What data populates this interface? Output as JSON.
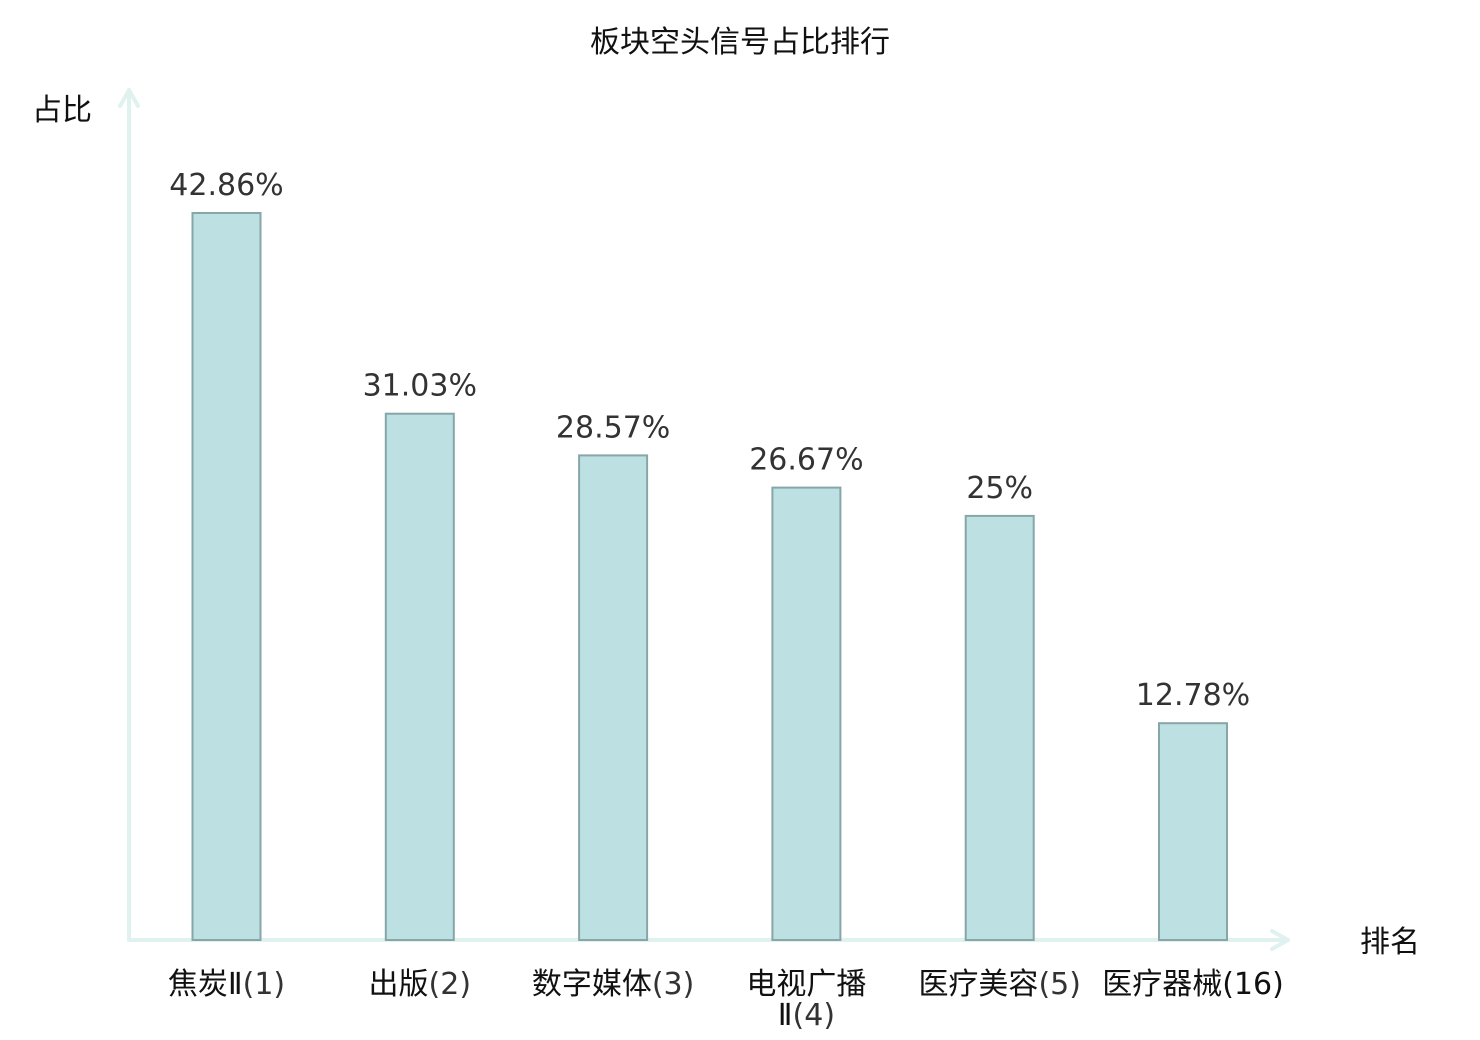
{
  "chart_data": {
    "type": "bar",
    "title": "板块空头信号占比排行",
    "ylabel": "占比",
    "xlabel": "排名",
    "ylim": [
      0,
      50
    ],
    "grid": false,
    "categories": [
      {
        "name": "焦炭Ⅱ",
        "rank": "(1)",
        "name_line1": "焦炭Ⅱ",
        "name_line2": ""
      },
      {
        "name": "出版",
        "rank": "(2)",
        "name_line1": "出版",
        "name_line2": ""
      },
      {
        "name": "数字媒体",
        "rank": "(3)",
        "name_line1": "数字媒体",
        "name_line2": ""
      },
      {
        "name": "电视广播Ⅱ",
        "rank": "(4)",
        "name_line1": "电视广播",
        "name_line2": "Ⅱ"
      },
      {
        "name": "医疗美容",
        "rank": "(5)",
        "name_line1": "医疗美容",
        "name_line2": ""
      },
      {
        "name": "医疗器械",
        "rank": "(16)",
        "name_line1": "医疗器械",
        "name_line2": ""
      }
    ],
    "values": [
      42.86,
      31.03,
      28.57,
      26.67,
      25,
      12.78
    ],
    "value_labels": [
      "42.86%",
      "31.03%",
      "28.57%",
      "26.67%",
      "25%",
      "12.78%"
    ],
    "highlight_index": 5,
    "colors": {
      "bar_fill": "#bde0e3",
      "bar_stroke": "#86a6a8",
      "axis": "#e0f2f0",
      "highlight_text": "#e8141c"
    }
  }
}
